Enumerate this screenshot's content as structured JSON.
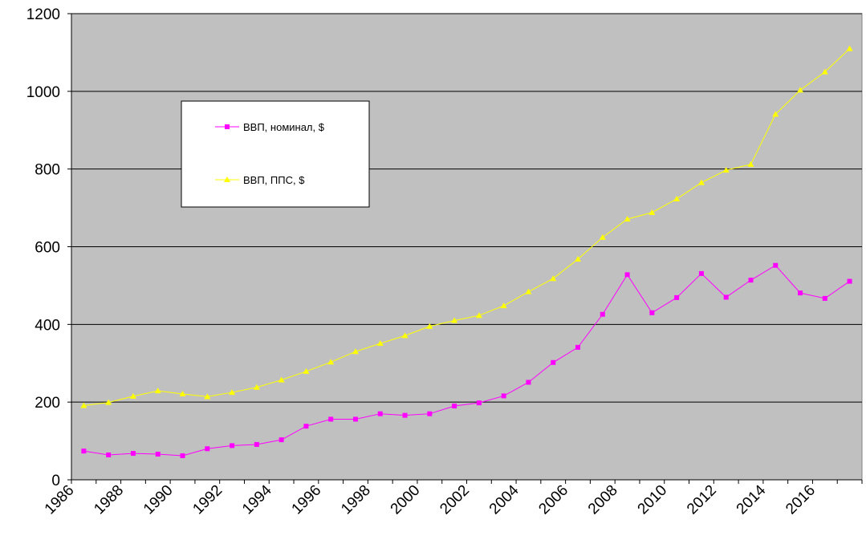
{
  "chart_data": {
    "type": "line",
    "x": [
      1986,
      1987,
      1988,
      1989,
      1990,
      1991,
      1992,
      1993,
      1994,
      1995,
      1996,
      1997,
      1998,
      1999,
      2000,
      2001,
      2002,
      2003,
      2004,
      2005,
      2006,
      2007,
      2008,
      2009,
      2010,
      2011,
      2012,
      2013,
      2014,
      2015,
      2016,
      2017
    ],
    "x_ticks": [
      "1986",
      "1988",
      "1990",
      "1992",
      "1994",
      "1996",
      "1998",
      "2000",
      "2002",
      "2004",
      "2006",
      "2008",
      "2010",
      "2012",
      "2014",
      "2016"
    ],
    "y_ticks": [
      "0",
      "200",
      "400",
      "600",
      "800",
      "1000",
      "1200"
    ],
    "ylim": [
      0,
      1200
    ],
    "grid": true,
    "legend_position": "upper-left",
    "series": [
      {
        "name": "ВВП, номинал, $",
        "color": "#ff00ff",
        "marker": "square",
        "values": [
          74,
          64,
          68,
          66,
          62,
          80,
          88,
          91,
          103,
          138,
          156,
          156,
          170,
          166,
          170,
          190,
          198,
          216,
          251,
          302,
          341,
          426,
          528,
          430,
          469,
          531,
          470,
          514,
          552,
          481,
          467,
          511
        ]
      },
      {
        "name": "ВВП, ППС, $",
        "color": "#ffff00",
        "marker": "triangle",
        "values": [
          191,
          199,
          215,
          229,
          221,
          214,
          225,
          238,
          257,
          279,
          303,
          330,
          351,
          371,
          395,
          410,
          423,
          448,
          484,
          518,
          568,
          624,
          671,
          688,
          723,
          765,
          797,
          812,
          941,
          1003,
          1050,
          1110
        ]
      }
    ]
  }
}
